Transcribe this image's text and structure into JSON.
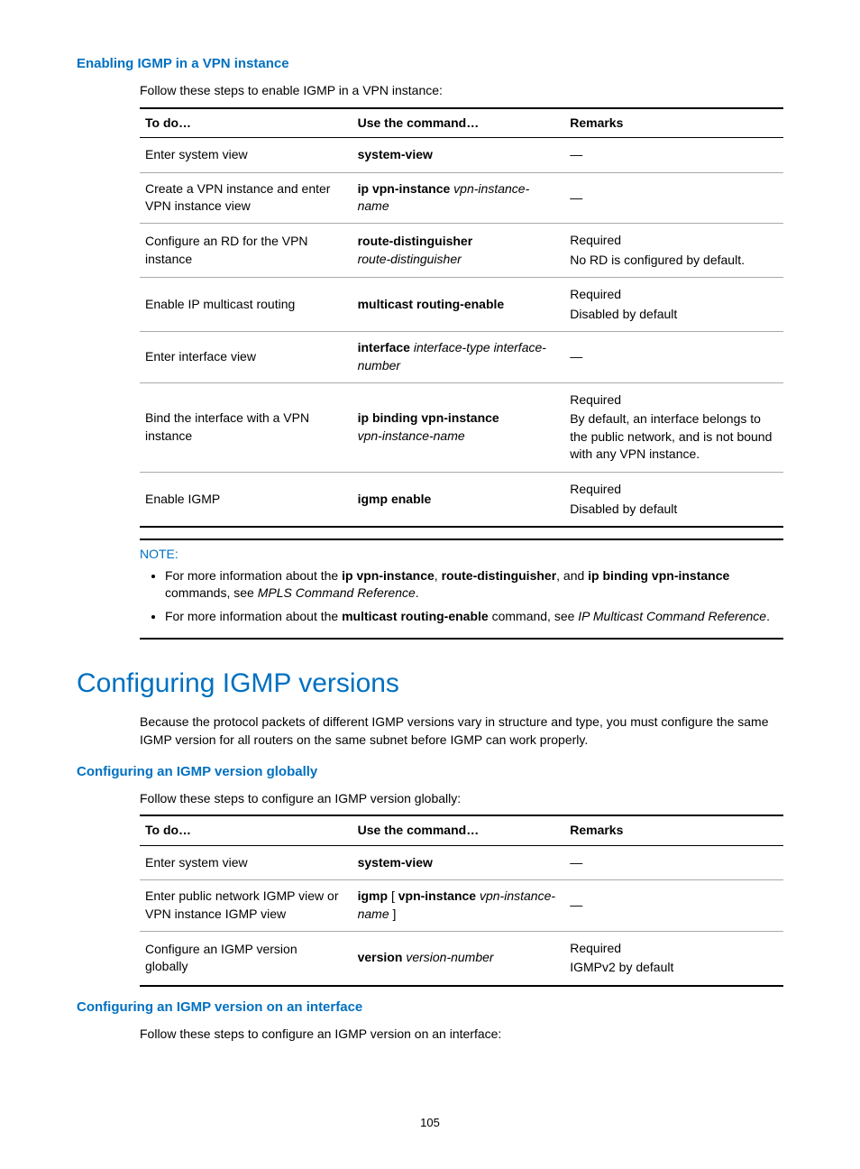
{
  "section1": {
    "heading": "Enabling IGMP in a VPN instance",
    "intro": "Follow these steps to enable IGMP in a VPN instance:",
    "headers": {
      "todo": "To do…",
      "cmd": "Use the command…",
      "rem": "Remarks"
    },
    "rows": [
      {
        "todo": "Enter system view",
        "cmd_bold": "system-view",
        "cmd_italic": "",
        "rem": [
          "—"
        ]
      },
      {
        "todo": "Create a VPN instance and enter VPN instance view",
        "cmd_bold": "ip vpn-instance",
        "cmd_italic": " vpn-instance-name",
        "rem": [
          "—"
        ]
      },
      {
        "todo": "Configure an RD for the VPN instance",
        "cmd_bold": "route-distinguisher",
        "cmd_italic": "route-distinguisher",
        "cmd_break": true,
        "rem": [
          "Required",
          "No RD is configured by default."
        ]
      },
      {
        "todo": "Enable IP multicast routing",
        "cmd_bold": "multicast routing-enable",
        "cmd_italic": "",
        "rem": [
          "Required",
          "Disabled by default"
        ]
      },
      {
        "todo": "Enter interface view",
        "cmd_bold": "interface",
        "cmd_italic": " interface-type interface-number",
        "rem": [
          "—"
        ]
      },
      {
        "todo": "Bind the interface with a VPN instance",
        "cmd_bold": "ip binding vpn-instance",
        "cmd_italic": "vpn-instance-name",
        "cmd_break": true,
        "rem": [
          "Required",
          "By default, an interface belongs to the public network, and is not bound with any VPN instance."
        ]
      },
      {
        "todo": "Enable IGMP",
        "cmd_bold": "igmp enable",
        "cmd_italic": "",
        "rem": [
          "Required",
          "Disabled by default"
        ]
      }
    ]
  },
  "note": {
    "label": "NOTE:",
    "items": [
      {
        "parts": [
          {
            "t": "For more information about the "
          },
          {
            "t": "ip vpn-instance",
            "b": true
          },
          {
            "t": ", "
          },
          {
            "t": "route-distinguisher",
            "b": true
          },
          {
            "t": ", and "
          },
          {
            "t": "ip binding vpn-instance",
            "b": true
          },
          {
            "t": " commands, see "
          },
          {
            "t": "MPLS Command Reference",
            "i": true
          },
          {
            "t": "."
          }
        ]
      },
      {
        "parts": [
          {
            "t": "For more information about the "
          },
          {
            "t": "multicast routing-enable",
            "b": true
          },
          {
            "t": " command, see "
          },
          {
            "t": "IP Multicast Command Reference",
            "i": true
          },
          {
            "t": "."
          }
        ]
      }
    ]
  },
  "section2": {
    "title": "Configuring IGMP versions",
    "para": "Because the protocol packets of different IGMP versions vary in structure and type, you must configure the same IGMP version for all routers on the same subnet before IGMP can work properly."
  },
  "section3": {
    "heading": "Configuring an IGMP version globally",
    "intro": "Follow these steps to configure an IGMP version globally:",
    "headers": {
      "todo": "To do…",
      "cmd": "Use the command…",
      "rem": "Remarks"
    },
    "rows": [
      {
        "todo": "Enter system view",
        "cmd_parts": [
          {
            "t": "system-view",
            "b": true
          }
        ],
        "rem": [
          "—"
        ]
      },
      {
        "todo": "Enter public network IGMP view or VPN instance IGMP view",
        "cmd_parts": [
          {
            "t": "igmp",
            "b": true
          },
          {
            "t": " [ "
          },
          {
            "t": "vpn-instance",
            "b": true
          },
          {
            "t": " "
          },
          {
            "t": "vpn-instance-name",
            "i": true
          },
          {
            "t": " ]"
          }
        ],
        "rem": [
          "—"
        ]
      },
      {
        "todo": "Configure an IGMP version globally",
        "cmd_parts": [
          {
            "t": "version",
            "b": true
          },
          {
            "t": " "
          },
          {
            "t": "version-number",
            "i": true
          }
        ],
        "rem": [
          "Required",
          "IGMPv2 by default"
        ]
      }
    ]
  },
  "section4": {
    "heading": "Configuring an IGMP version on an interface",
    "intro": "Follow these steps to configure an IGMP version on an interface:"
  },
  "page_number": "105"
}
